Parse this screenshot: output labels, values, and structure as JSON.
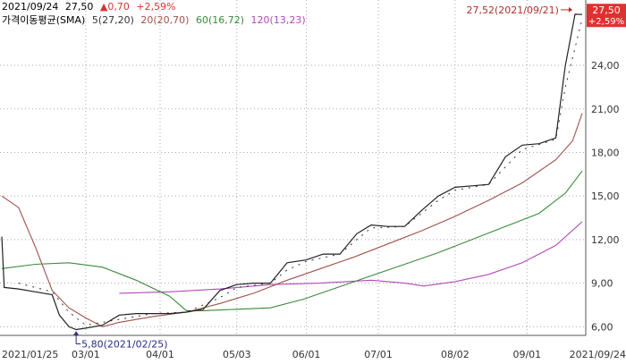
{
  "header": {
    "date": "2021/09/24",
    "price": "27,50",
    "change": "▲0,70",
    "change_pct": "+2,59%",
    "sma_label": "가격이동평균(SMA)",
    "sma_items": [
      {
        "label": "5(27,20)",
        "color": "#333333"
      },
      {
        "label": "20(20,70)",
        "color": "#a0524a"
      },
      {
        "label": "60(16,72)",
        "color": "#3a8a3a"
      },
      {
        "label": "120(13,23)",
        "color": "#b04ab8"
      }
    ]
  },
  "colors": {
    "up": "#e03030",
    "down": "#2a2a8a",
    "grid": "#aaaaaa",
    "price_line": "#222222",
    "ma5": "#333333",
    "ma20": "#a0524a",
    "ma60": "#3a8a3a",
    "ma120": "#b04ab8"
  },
  "chart_data": {
    "type": "line",
    "x_labels": [
      "2021/01/25",
      "03/01",
      "04/01",
      "05/03",
      "06/01",
      "07/01",
      "08/02",
      "09/01",
      "2021/09/24"
    ],
    "y_ticks": [
      "6,00",
      "9,00",
      "12,00",
      "15,00",
      "18,00",
      "21,00",
      "24,00"
    ],
    "ylim": [
      5.4,
      28.5
    ],
    "current_price_label": [
      "27,50",
      "+2,59%"
    ],
    "annotations": {
      "high": "27,52(2021/09/21)",
      "low": "5,80(2021/02/25)"
    },
    "series": [
      {
        "name": "price",
        "points": [
          [
            "2021/01/25",
            12.2
          ],
          [
            "2021/01/26",
            8.7
          ],
          [
            "2021/02/01",
            8.6
          ],
          [
            "2021/02/08",
            8.4
          ],
          [
            "2021/02/15",
            8.2
          ],
          [
            "2021/02/18",
            6.8
          ],
          [
            "2021/02/22",
            6.0
          ],
          [
            "2021/02/25",
            5.8
          ],
          [
            "2021/03/01",
            5.9
          ],
          [
            "2021/03/08",
            6.1
          ],
          [
            "2021/03/15",
            6.8
          ],
          [
            "2021/03/22",
            6.9
          ],
          [
            "2021/03/29",
            6.9
          ],
          [
            "2021/04/05",
            6.9
          ],
          [
            "2021/04/12",
            7.0
          ],
          [
            "2021/04/19",
            7.2
          ],
          [
            "2021/04/26",
            8.5
          ],
          [
            "2021/05/03",
            8.9
          ],
          [
            "2021/05/10",
            9.0
          ],
          [
            "2021/05/17",
            9.0
          ],
          [
            "2021/05/24",
            10.4
          ],
          [
            "2021/06/01",
            10.6
          ],
          [
            "2021/06/08",
            11.0
          ],
          [
            "2021/06/15",
            11.0
          ],
          [
            "2021/06/22",
            12.4
          ],
          [
            "2021/06/28",
            13.0
          ],
          [
            "2021/07/05",
            12.9
          ],
          [
            "2021/07/12",
            12.9
          ],
          [
            "2021/07/19",
            14.0
          ],
          [
            "2021/07/26",
            15.0
          ],
          [
            "2021/08/02",
            15.6
          ],
          [
            "2021/08/09",
            15.7
          ],
          [
            "2021/08/16",
            15.8
          ],
          [
            "2021/08/23",
            17.7
          ],
          [
            "2021/08/30",
            18.5
          ],
          [
            "2021/09/06",
            18.6
          ],
          [
            "2021/09/13",
            19.0
          ],
          [
            "2021/09/17",
            24.0
          ],
          [
            "2021/09/21",
            27.52
          ],
          [
            "2021/09/24",
            27.5
          ]
        ]
      },
      {
        "name": "SMA5",
        "points": [
          [
            "2021/02/01",
            9.0
          ],
          [
            "2021/02/15",
            8.4
          ],
          [
            "2021/02/22",
            7.0
          ],
          [
            "2021/03/01",
            6.1
          ],
          [
            "2021/03/15",
            6.5
          ],
          [
            "2021/03/29",
            6.9
          ],
          [
            "2021/04/12",
            7.0
          ],
          [
            "2021/04/26",
            8.0
          ],
          [
            "2021/05/03",
            8.7
          ],
          [
            "2021/05/17",
            9.0
          ],
          [
            "2021/05/24",
            9.9
          ],
          [
            "2021/06/01",
            10.5
          ],
          [
            "2021/06/15",
            11.0
          ],
          [
            "2021/06/22",
            12.0
          ],
          [
            "2021/06/28",
            12.8
          ],
          [
            "2021/07/12",
            12.9
          ],
          [
            "2021/07/19",
            13.8
          ],
          [
            "2021/07/26",
            14.7
          ],
          [
            "2021/08/02",
            15.4
          ],
          [
            "2021/08/16",
            15.8
          ],
          [
            "2021/08/23",
            17.0
          ],
          [
            "2021/08/30",
            18.2
          ],
          [
            "2021/09/13",
            18.9
          ],
          [
            "2021/09/17",
            22.5
          ],
          [
            "2021/09/24",
            27.2
          ]
        ]
      },
      {
        "name": "SMA20",
        "points": [
          [
            "2021/01/25",
            15.0
          ],
          [
            "2021/02/01",
            14.2
          ],
          [
            "2021/02/08",
            11.5
          ],
          [
            "2021/02/15",
            8.5
          ],
          [
            "2021/02/22",
            7.3
          ],
          [
            "2021/03/01",
            6.6
          ],
          [
            "2021/03/08",
            6.0
          ],
          [
            "2021/03/15",
            6.3
          ],
          [
            "2021/03/29",
            6.7
          ],
          [
            "2021/04/12",
            7.0
          ],
          [
            "2021/04/26",
            7.6
          ],
          [
            "2021/05/10",
            8.3
          ],
          [
            "2021/05/24",
            9.2
          ],
          [
            "2021/06/07",
            10.0
          ],
          [
            "2021/06/21",
            10.8
          ],
          [
            "2021/07/05",
            11.7
          ],
          [
            "2021/07/19",
            12.6
          ],
          [
            "2021/08/02",
            13.6
          ],
          [
            "2021/08/16",
            14.7
          ],
          [
            "2021/08/30",
            15.9
          ],
          [
            "2021/09/13",
            17.5
          ],
          [
            "2021/09/20",
            18.8
          ],
          [
            "2021/09/24",
            20.7
          ]
        ]
      },
      {
        "name": "SMA60",
        "points": [
          [
            "2021/01/25",
            10.0
          ],
          [
            "2021/02/08",
            10.3
          ],
          [
            "2021/02/22",
            10.4
          ],
          [
            "2021/03/08",
            10.1
          ],
          [
            "2021/03/22",
            9.2
          ],
          [
            "2021/04/05",
            8.1
          ],
          [
            "2021/04/12",
            7.1
          ],
          [
            "2021/04/19",
            7.1
          ],
          [
            "2021/05/03",
            7.2
          ],
          [
            "2021/05/17",
            7.3
          ],
          [
            "2021/05/31",
            7.9
          ],
          [
            "2021/06/14",
            8.7
          ],
          [
            "2021/06/28",
            9.5
          ],
          [
            "2021/07/12",
            10.3
          ],
          [
            "2021/07/26",
            11.1
          ],
          [
            "2021/08/09",
            12.0
          ],
          [
            "2021/08/23",
            12.9
          ],
          [
            "2021/09/06",
            13.8
          ],
          [
            "2021/09/17",
            15.2
          ],
          [
            "2021/09/24",
            16.72
          ]
        ]
      },
      {
        "name": "SMA120",
        "points": [
          [
            "2021/03/15",
            8.3
          ],
          [
            "2021/04/05",
            8.4
          ],
          [
            "2021/04/26",
            8.6
          ],
          [
            "2021/05/17",
            8.9
          ],
          [
            "2021/06/07",
            9.0
          ],
          [
            "2021/06/28",
            9.2
          ],
          [
            "2021/07/12",
            9.0
          ],
          [
            "2021/07/20",
            8.8
          ],
          [
            "2021/08/02",
            9.1
          ],
          [
            "2021/08/16",
            9.6
          ],
          [
            "2021/08/30",
            10.4
          ],
          [
            "2021/09/13",
            11.6
          ],
          [
            "2021/09/24",
            13.23
          ]
        ]
      }
    ]
  }
}
